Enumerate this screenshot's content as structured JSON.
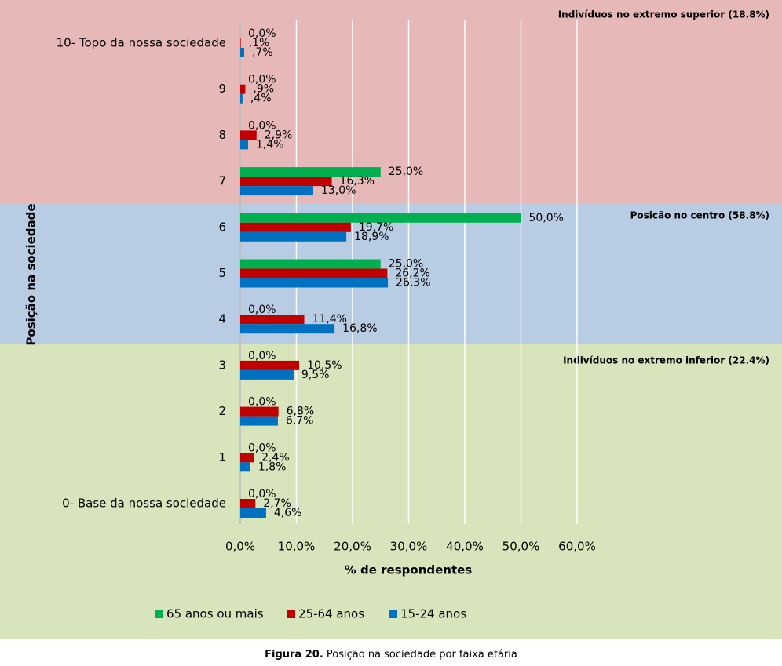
{
  "chart_data": {
    "type": "bar",
    "orientation": "horizontal",
    "y_label": "Posição na sociedade",
    "x_label": "% de respondentes",
    "categories": [
      "10- Topo da nossa sociedade",
      "9",
      "8",
      "7",
      "6",
      "5",
      "4",
      "3",
      "2",
      "1",
      "0- Base da nossa sociedade"
    ],
    "series": [
      {
        "name": "65 anos ou mais",
        "color": "#00b050",
        "values": [
          0,
          0,
          0,
          25,
          50,
          25,
          0,
          0,
          0,
          0,
          0
        ],
        "value_labels": [
          "0,0%",
          "0,0%",
          "0,0%",
          "25,0%",
          "50,0%",
          "25,0%",
          "0,0%",
          "0,0%",
          "0,0%",
          "0,0%",
          "0,0%"
        ]
      },
      {
        "name": "25-64 anos",
        "color": "#c00000",
        "values": [
          0.1,
          0.9,
          2.9,
          16.3,
          19.7,
          26.2,
          11.4,
          10.5,
          6.8,
          2.4,
          2.7
        ],
        "value_labels": [
          ",1%",
          ",9%",
          "2,9%",
          "16,3%",
          "19,7%",
          "26,2%",
          "11,4%",
          "10,5%",
          "6,8%",
          "2,4%",
          "2,7%"
        ]
      },
      {
        "name": "15-24 anos",
        "color": "#0070c0",
        "values": [
          0.7,
          0.4,
          1.4,
          13.0,
          18.9,
          26.3,
          16.8,
          9.5,
          6.7,
          1.8,
          4.6
        ],
        "value_labels": [
          ",7%",
          ",4%",
          "1,4%",
          "13,0%",
          "18,9%",
          "26,3%",
          "16,8%",
          "9,5%",
          "6,7%",
          "1,8%",
          "4,6%"
        ]
      }
    ],
    "xlim": [
      0,
      60
    ],
    "xticks": [
      {
        "value": 0,
        "label": "0,0%"
      },
      {
        "value": 10,
        "label": "10,0%"
      },
      {
        "value": 20,
        "label": "20,0%"
      },
      {
        "value": 30,
        "label": "30,0%"
      },
      {
        "value": 40,
        "label": "40,0%"
      },
      {
        "value": 50,
        "label": "50,0%"
      },
      {
        "value": 60,
        "label": "60,0%"
      }
    ],
    "grid": true,
    "annotations": [
      "Indivíduos no extremo superior (18.8%)",
      "Posição no centro (58.8%)",
      "Indivíduos no extremo inferior (22.4%)"
    ],
    "caption": {
      "label": "Figura 20.",
      "text": "Posição na sociedade por faixa etária"
    }
  }
}
